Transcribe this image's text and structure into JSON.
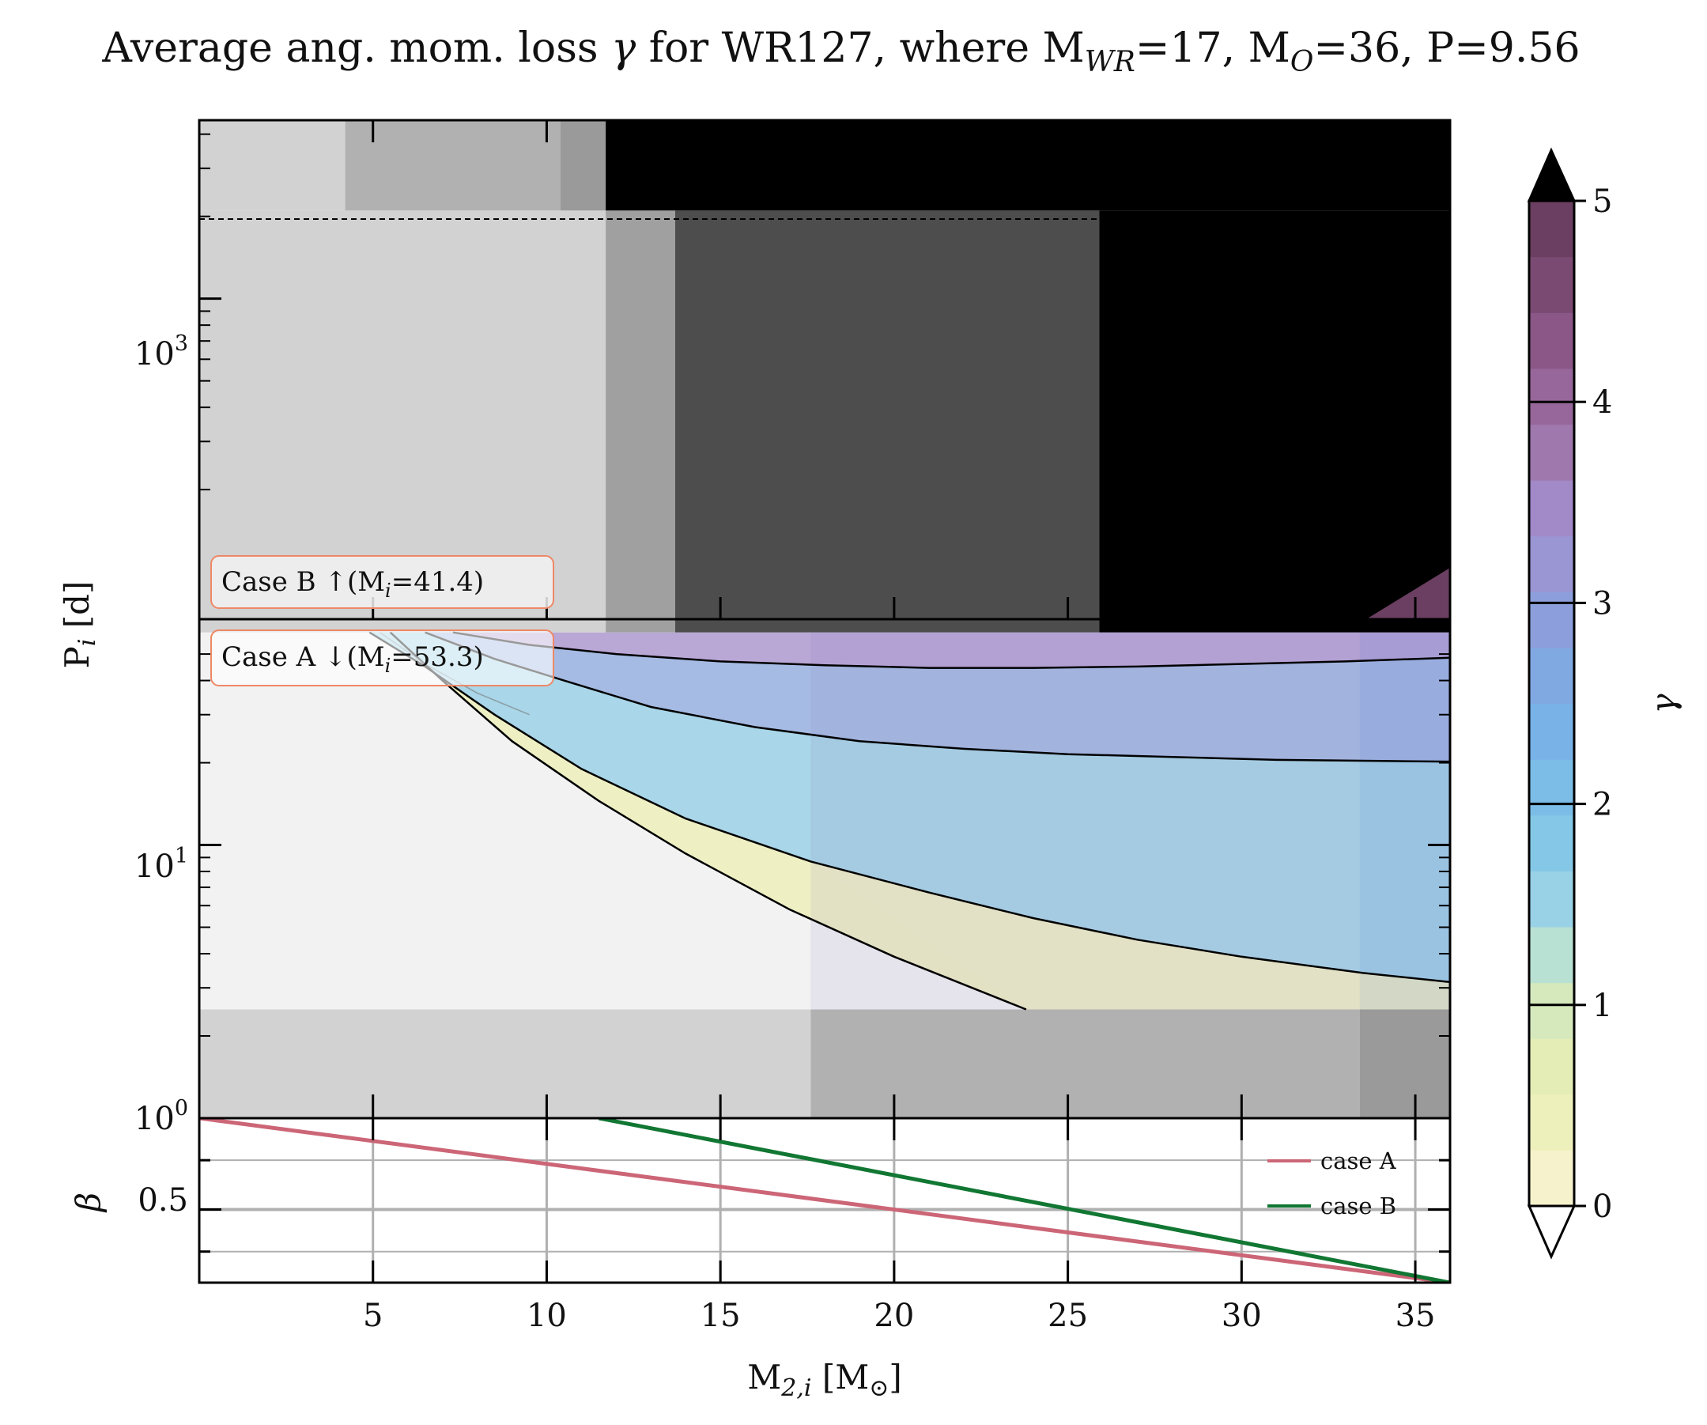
{
  "title_parts": {
    "prefix": "Average ang. mom. loss ",
    "symbol": "γ",
    "mid": " for WR127, where M",
    "sub1": "WR",
    "p2": "=17, M",
    "sub2": "O",
    "p3": "=36, P=9.56"
  },
  "chart_data": [
    {
      "type": "heatmap",
      "panel": "top",
      "title": "Average ang. mom. loss γ for WR127, where M_WR=17, M_O=36, P=9.56",
      "xlabel": "",
      "ylabel": "P_i [d]",
      "ylabel_parts": {
        "main": "P",
        "sub": "i",
        "rest": " [d]"
      },
      "xlim": [
        0,
        36
      ],
      "ylim": [
        1,
        4500
      ],
      "yscale": "log",
      "ytick_labels": [
        {
          "base": "10",
          "exp": "0",
          "value": 1
        },
        {
          "base": "10",
          "exp": "1",
          "value": 10
        },
        {
          "base": "10",
          "exp": "3",
          "value": 1000
        }
      ],
      "boundary_period": 60,
      "annotations": [
        {
          "prefix": "Case B ↑(M",
          "sub": "i",
          "suffix": "=41.4)"
        },
        {
          "prefix": "Case A ↓(M",
          "sub": "i",
          "suffix": "=53.3)"
        }
      ],
      "contour_levels": [
        1,
        2,
        3,
        4
      ],
      "colorbar": {
        "label": "γ",
        "range": [
          0,
          5
        ],
        "ticks": [
          "0",
          "1",
          "2",
          "3",
          "4",
          "5"
        ],
        "extend": "both",
        "colors": [
          "#f6f2cc",
          "#eef0bc",
          "#e4edb6",
          "#d5e9bd",
          "#b9e1d3",
          "#99d1e6",
          "#85c7e6",
          "#7cbde7",
          "#78b2e6",
          "#80a9e2",
          "#8c9fdc",
          "#9a95d3",
          "#a289c7",
          "#9f78ad",
          "#97679b",
          "#8a5787",
          "#7a4a73",
          "#6b3f61"
        ]
      },
      "contours": [
        {
          "x": [
            4.9,
            6.5,
            8.5,
            11,
            14,
            17.6,
            21,
            24,
            27,
            30,
            33.5,
            36
          ],
          "y": [
            60,
            45,
            30,
            19,
            12.5,
            8.7,
            6.7,
            5.4,
            4.5,
            3.9,
            3.4,
            3.15
          ]
        },
        {
          "x": [
            6.5,
            8.5,
            10.5,
            13,
            16,
            19,
            22,
            25,
            28,
            31,
            34,
            36
          ],
          "y": [
            60,
            48,
            40,
            32,
            27,
            24,
            22.5,
            21.5,
            21,
            20.5,
            20.3,
            20.2
          ]
        },
        {
          "x": [
            7.3,
            9.5,
            12,
            15,
            18,
            21,
            24,
            27,
            30,
            33,
            36
          ],
          "y": [
            60,
            54,
            50,
            47,
            45.5,
            44.5,
            44.5,
            45,
            46,
            47,
            48.5
          ]
        },
        {
          "x": [
            5.5,
            7,
            9,
            11.5,
            14,
            17,
            20,
            23.8
          ],
          "y": [
            60,
            40,
            24,
            14.5,
            9.3,
            5.8,
            3.9,
            2.5
          ]
        }
      ],
      "grey_regions": [
        {
          "x0": 0,
          "x1": 4.2,
          "y0": 2100,
          "y1": 4500,
          "color": "#d2d2d2"
        },
        {
          "x0": 4.2,
          "x1": 10.4,
          "y0": 2100,
          "y1": 4500,
          "color": "#b1b1b1"
        },
        {
          "x0": 10.4,
          "x1": 11.7,
          "y0": 2100,
          "y1": 4500,
          "color": "#9a9a9a"
        },
        {
          "x0": 11.7,
          "x1": 36,
          "y0": 2100,
          "y1": 4500,
          "color": "#000000"
        },
        {
          "x0": 0,
          "x1": 11.7,
          "y0": 60,
          "y1": 2100,
          "color": "#d2d2d2"
        },
        {
          "x0": 11.7,
          "x1": 13.7,
          "y0": 60,
          "y1": 2100,
          "color": "#a0a0a0"
        },
        {
          "x0": 13.7,
          "x1": 25.9,
          "y0": 60,
          "y1": 2100,
          "color": "#4d4d4d"
        },
        {
          "x0": 25.9,
          "x1": 36,
          "y0": 60,
          "y1": 2100,
          "color": "#000000"
        },
        {
          "x0": 0,
          "x1": 17.6,
          "y0": 1,
          "y1": 2.5,
          "color": "#d2d2d2"
        },
        {
          "x0": 17.6,
          "x1": 33.4,
          "y0": 1,
          "y1": 2.5,
          "color": "#b1b1b1"
        },
        {
          "x0": 33.4,
          "x1": 36,
          "y0": 1,
          "y1": 2.5,
          "color": "#9a9a9a"
        }
      ]
    },
    {
      "type": "line",
      "panel": "bottom",
      "xlabel": "M_2,i [M_⊙]",
      "xlabel_parts": {
        "main": "M",
        "sub": "2,i",
        "rest_open": " [M",
        "sub2": "⊙",
        "rest_close": "]"
      },
      "ylabel": "β",
      "xlim": [
        0,
        36
      ],
      "ylim": [
        0.1,
        1.0
      ],
      "x_ticks": [
        "5",
        "10",
        "15",
        "20",
        "25",
        "30",
        "35"
      ],
      "y_ticks": [
        {
          "label": "0.5",
          "value": 0.5
        }
      ],
      "y_gridlines": [
        0.27,
        0.5,
        0.77
      ],
      "y_max_label": "10",
      "series": [
        {
          "name": "case A",
          "color": "#cc6677",
          "x": [
            0,
            36
          ],
          "y": [
            1.0,
            0.1
          ]
        },
        {
          "name": "case B",
          "color": "#117733",
          "x": [
            11.5,
            36
          ],
          "y": [
            1.0,
            0.1
          ]
        }
      ],
      "legend_location": "upper-right"
    }
  ]
}
